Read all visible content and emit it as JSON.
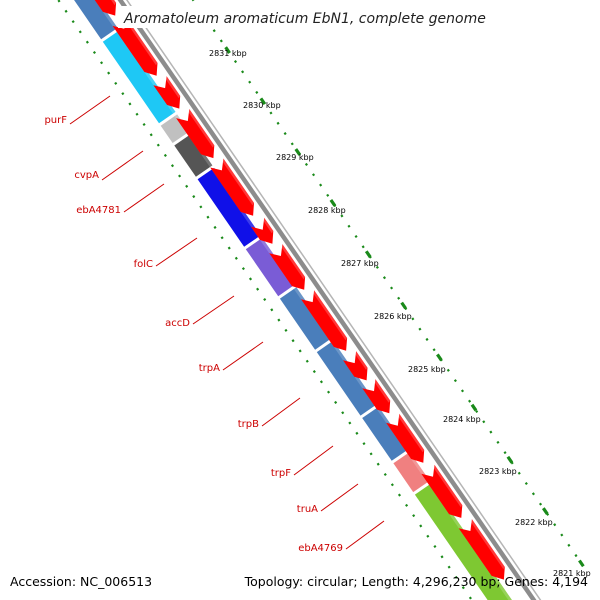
{
  "title": "Aromatoleum aromaticum EbN1, complete genome",
  "footer": {
    "accession": "Accession: NC_006513",
    "topology": "Topology: circular; Length: 4,296,230 bp; Genes: 4,194"
  },
  "ruler": [
    "2831 kbp",
    "2830 kbp",
    "2829 kbp",
    "2828 kbp",
    "2827 kbp",
    "2826 kbp",
    "2825 kbp",
    "2824 kbp",
    "2823 kbp",
    "2822 kbp",
    "2821 kbp"
  ],
  "genes": [
    {
      "label": "",
      "color": "#4a7ebb"
    },
    {
      "label": "purF",
      "color": "#1ec8f5"
    },
    {
      "label": "cvpA",
      "color": "#c0c0c0"
    },
    {
      "label": "ebA4781",
      "color": "#555555"
    },
    {
      "label": "folC",
      "color": "#1010e8"
    },
    {
      "label": "accD",
      "color": "#7a5cd6"
    },
    {
      "label": "trpA",
      "color": "#4a7ebb"
    },
    {
      "label": "trpB",
      "color": "#4a7ebb"
    },
    {
      "label": "trpF",
      "color": "#4a7ebb"
    },
    {
      "label": "truA",
      "color": "#f08080"
    },
    {
      "label": "ebA4769",
      "color": "#7ec832"
    }
  ],
  "colors": {
    "cds_forward": "#ff0000",
    "gc_marks": "#1a8a1a",
    "backbone": "#888888",
    "label_text": "#cc0000"
  }
}
